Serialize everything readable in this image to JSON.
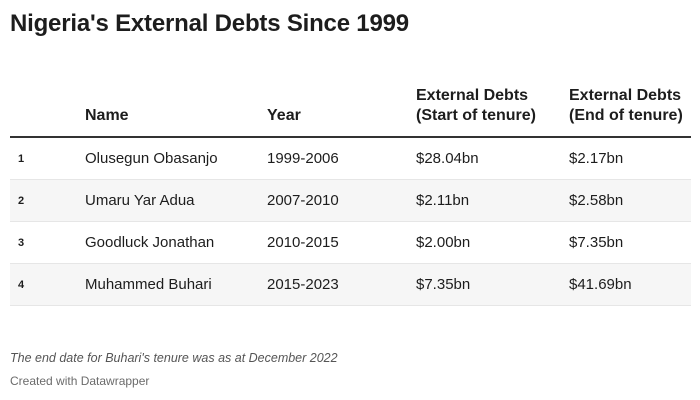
{
  "title": "Nigeria's External Debts Since 1999",
  "chart_data": {
    "type": "table",
    "title": "Nigeria's External Debts Since 1999",
    "columns": [
      "",
      "Name",
      "Year",
      "External Debts (Start of tenure)",
      "External Debts (End of tenure)"
    ],
    "rows": [
      {
        "rank": "1",
        "name": "Olusegun Obasanjo",
        "year": "1999-2006",
        "start": "$28.04bn",
        "end": "$2.17bn"
      },
      {
        "rank": "2",
        "name": "Umaru Yar Adua",
        "year": "2007-2010",
        "start": "$2.11bn",
        "end": "$2.58bn"
      },
      {
        "rank": "3",
        "name": "Goodluck Jonathan",
        "year": "2010-2015",
        "start": "$2.00bn",
        "end": "$7.35bn"
      },
      {
        "rank": "4",
        "name": "Muhammed Buhari",
        "year": "2015-2023",
        "start": "$7.35bn",
        "end": "$41.69bn"
      }
    ]
  },
  "notes": "The end date for Buhari's tenure was as at December 2022",
  "credit": "Created with Datawrapper"
}
